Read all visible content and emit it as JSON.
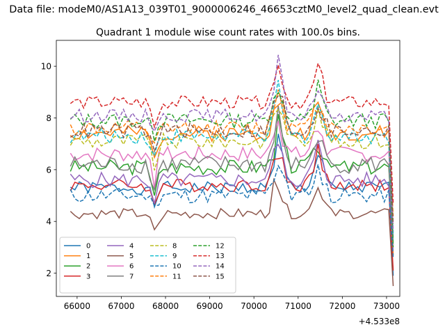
{
  "figure": {
    "suptitle": "Data file: modeM0/AS1A13_039T01_9000006246_46653cztM0_level2_quad_clean.evt"
  },
  "chart_data": {
    "type": "line",
    "title": "Quadrant 1 module wise count rates with 100.0s bins.",
    "xlabel": "",
    "ylabel": "",
    "x_offset_label": "+4.533e8",
    "x_ticks": [
      66000,
      67000,
      68000,
      69000,
      70000,
      71000,
      72000,
      73000
    ],
    "y_ticks": [
      2,
      4,
      6,
      8,
      10
    ],
    "xlim": [
      65530,
      73300
    ],
    "ylim": [
      1.1,
      11.0
    ],
    "grid": false,
    "legend": {
      "placement": "lower left",
      "columns": 4
    },
    "x": {
      "start": 65850,
      "step": 100,
      "count": 74
    },
    "series": [
      {
        "name": "0",
        "color": "#1f77b4",
        "dash": "solid",
        "base": 5.3,
        "amp": 0.25,
        "seed": 1
      },
      {
        "name": "1",
        "color": "#ff7f0e",
        "dash": "solid",
        "base": 7.4,
        "amp": 0.3,
        "seed": 2
      },
      {
        "name": "2",
        "color": "#2ca02c",
        "dash": "solid",
        "base": 6.1,
        "amp": 0.3,
        "seed": 3
      },
      {
        "name": "3",
        "color": "#d62728",
        "dash": "solid",
        "base": 5.4,
        "amp": 0.25,
        "seed": 4
      },
      {
        "name": "4",
        "color": "#9467bd",
        "dash": "solid",
        "base": 5.6,
        "amp": 0.3,
        "seed": 5
      },
      {
        "name": "5",
        "color": "#8c564b",
        "dash": "solid",
        "base": 4.3,
        "amp": 0.2,
        "seed": 6
      },
      {
        "name": "6",
        "color": "#e377c2",
        "dash": "solid",
        "base": 6.6,
        "amp": 0.3,
        "seed": 7
      },
      {
        "name": "7",
        "color": "#7f7f7f",
        "dash": "solid",
        "base": 6.2,
        "amp": 0.35,
        "seed": 8
      },
      {
        "name": "8",
        "color": "#bcbd22",
        "dash": "dashed",
        "base": 7.1,
        "amp": 0.3,
        "seed": 9
      },
      {
        "name": "9",
        "color": "#17becf",
        "dash": "dashed",
        "base": 7.3,
        "amp": 0.3,
        "seed": 10
      },
      {
        "name": "10",
        "color": "#1f77b4",
        "dash": "dashed",
        "base": 5.0,
        "amp": 0.3,
        "seed": 11
      },
      {
        "name": "11",
        "color": "#ff7f0e",
        "dash": "dashed",
        "base": 7.6,
        "amp": 0.3,
        "seed": 12
      },
      {
        "name": "12",
        "color": "#2ca02c",
        "dash": "dashed",
        "base": 7.9,
        "amp": 0.3,
        "seed": 13
      },
      {
        "name": "13",
        "color": "#d62728",
        "dash": "dashed",
        "base": 8.6,
        "amp": 0.25,
        "seed": 14
      },
      {
        "name": "14",
        "color": "#9467bd",
        "dash": "dashed",
        "base": 8.1,
        "amp": 0.25,
        "seed": 15
      },
      {
        "name": "15",
        "color": "#8c564b",
        "dash": "dashed",
        "base": 7.5,
        "amp": 0.3,
        "seed": 16
      }
    ],
    "features": {
      "dip_x": 67750,
      "dip_depth": 0.9,
      "peaks": [
        {
          "x": 70550,
          "height": 1.7
        },
        {
          "x": 71450,
          "height": 1.3
        }
      ],
      "drop_x": 73100,
      "drop_to": [
        1.9,
        2.7,
        3.1,
        2.1,
        3.4,
        1.5,
        2.9,
        3.2,
        4.1,
        3.5,
        2.6,
        4.2,
        3.0,
        4.7,
        3.6,
        3.9
      ]
    }
  }
}
